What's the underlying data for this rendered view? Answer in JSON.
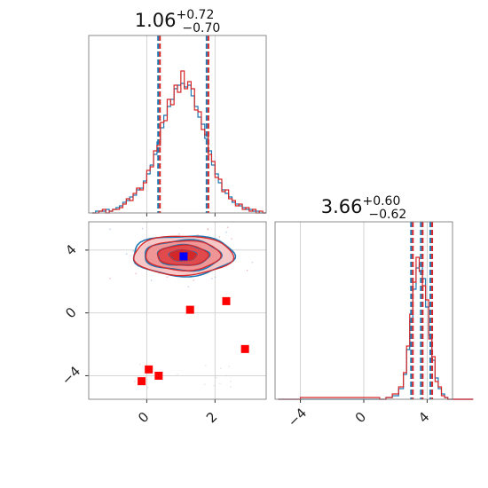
{
  "chart_data": [
    {
      "type": "histogram",
      "panel": "marginal-x",
      "title": {
        "value": "1.06",
        "plus": "+0.72",
        "minus": "−0.70"
      },
      "xlim": [
        -1.7,
        3.5
      ],
      "xticks": [
        0,
        2
      ],
      "bins_x": [
        -1.6,
        -1.5,
        -1.4,
        -1.3,
        -1.2,
        -1.1,
        -1.0,
        -0.9,
        -0.8,
        -0.7,
        -0.6,
        -0.5,
        -0.4,
        -0.3,
        -0.2,
        -0.1,
        0.0,
        0.1,
        0.2,
        0.3,
        0.4,
        0.5,
        0.6,
        0.7,
        0.8,
        0.9,
        1.0,
        1.1,
        1.2,
        1.3,
        1.4,
        1.5,
        1.6,
        1.7,
        1.8,
        1.9,
        2.0,
        2.1,
        2.2,
        2.3,
        2.4,
        2.5,
        2.6,
        2.7,
        2.8,
        2.9,
        3.0,
        3.1,
        3.2,
        3.3,
        3.4
      ],
      "series": [
        {
          "name": "",
          "color": "#1f77b4",
          "values": [
            0,
            1,
            1,
            1,
            2,
            1,
            2,
            3,
            4,
            6,
            7,
            9,
            10,
            13,
            14,
            18,
            22,
            27,
            33,
            40,
            48,
            55,
            60,
            64,
            70,
            72,
            73,
            71,
            72,
            66,
            60,
            54,
            50,
            42,
            35,
            27,
            22,
            17,
            13,
            11,
            9,
            6,
            5,
            4,
            3,
            2,
            2,
            1,
            1,
            0,
            0
          ]
        },
        {
          "name": "",
          "color": "#d62728",
          "values": [
            0,
            0,
            1,
            2,
            0,
            1,
            2,
            2,
            3,
            5,
            8,
            7,
            11,
            14,
            13,
            17,
            24,
            26,
            35,
            38,
            51,
            52,
            64,
            61,
            72,
            68,
            80,
            70,
            74,
            70,
            58,
            57,
            47,
            44,
            33,
            29,
            20,
            19,
            12,
            13,
            8,
            7,
            4,
            5,
            2,
            3,
            1,
            2,
            0,
            1,
            0
          ]
        }
      ],
      "quantile_lines": [
        0.36,
        1.06,
        1.78
      ]
    },
    {
      "type": "histogram",
      "panel": "marginal-y",
      "title": {
        "value": "3.66",
        "plus": "+0.60",
        "minus": "−0.62"
      },
      "xlim": [
        -5.6,
        5.6
      ],
      "xticks": [
        -4,
        0,
        4
      ],
      "xtick_labels": [
        "−4",
        "0",
        "4"
      ],
      "bins_x": [
        -5.4,
        -4.0,
        1.0,
        1.4,
        1.8,
        2.2,
        2.5,
        2.7,
        2.9,
        3.1,
        3.3,
        3.5,
        3.7,
        3.9,
        4.1,
        4.3,
        4.5,
        4.7,
        4.9,
        5.1,
        5.3,
        5.5
      ],
      "series": [
        {
          "name": "",
          "color": "#1f77b4",
          "values": [
            0,
            0,
            0,
            1,
            2,
            6,
            14,
            28,
            44,
            62,
            74,
            76,
            68,
            52,
            36,
            22,
            12,
            6,
            3,
            1,
            0,
            0
          ]
        },
        {
          "name": "",
          "color": "#d62728",
          "values": [
            0,
            1,
            0,
            1,
            3,
            7,
            15,
            30,
            48,
            66,
            80,
            72,
            64,
            56,
            34,
            24,
            10,
            7,
            2,
            1,
            0,
            0
          ]
        }
      ],
      "quantile_lines": [
        3.04,
        3.66,
        4.26
      ]
    },
    {
      "type": "contour-scatter",
      "panel": "joint",
      "xlim": [
        -1.7,
        3.5
      ],
      "ylim": [
        -5.5,
        5.8
      ],
      "xticks": [
        0,
        2
      ],
      "yticks": [
        -4,
        0,
        4
      ],
      "ytick_labels": [
        "−4",
        "0",
        "4"
      ],
      "density_center": [
        1.06,
        3.66
      ],
      "density_sigma": [
        0.71,
        0.61
      ],
      "markers_red": [
        {
          "x": 1.27,
          "y": 0.2
        },
        {
          "x": 2.33,
          "y": 0.75
        },
        {
          "x": 2.88,
          "y": -2.3
        },
        {
          "x": 0.06,
          "y": -3.6
        },
        {
          "x": 0.35,
          "y": -4.0
        },
        {
          "x": -0.15,
          "y": -4.35
        }
      ],
      "marker_blue": {
        "x": 1.08,
        "y": 3.6
      }
    }
  ]
}
